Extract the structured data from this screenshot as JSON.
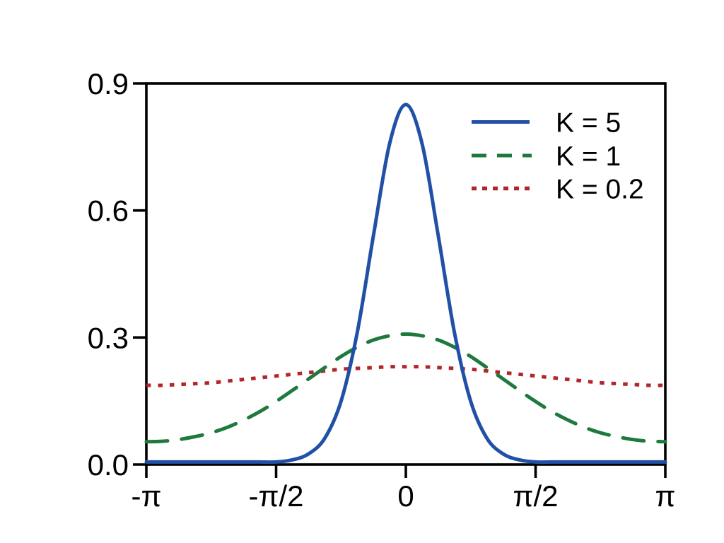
{
  "figure": {
    "background": "#ffffff",
    "axis_color": "#000000",
    "text_color": "#000000"
  },
  "chart_data": {
    "type": "line",
    "title": "",
    "xlabel": "",
    "ylabel": "",
    "x_unit": "radians, expressed as multiples of pi",
    "xlim_over_pi": [
      -1,
      1
    ],
    "ylim": [
      0,
      0.9
    ],
    "grid": false,
    "legend_position": "top-right-inside",
    "x_over_pi": [
      -1,
      -0.9375,
      -0.875,
      -0.8125,
      -0.75,
      -0.6875,
      -0.625,
      -0.5625,
      -0.5,
      -0.4375,
      -0.375,
      -0.3125,
      -0.25,
      -0.1875,
      -0.125,
      -0.0625,
      0,
      0.0625,
      0.125,
      0.1875,
      0.25,
      0.3125,
      0.375,
      0.4375,
      0.5,
      0.5625,
      0.625,
      0.6875,
      0.75,
      0.8125,
      0.875,
      0.9375,
      1
    ],
    "series": [
      {
        "name": "K = 5",
        "style": "solid",
        "color": "#2151A6",
        "values": [
          0.006,
          0.006,
          0.006,
          0.006,
          0.006,
          0.006,
          0.006,
          0.006,
          0.006,
          0.011,
          0.025,
          0.062,
          0.149,
          0.311,
          0.54,
          0.758,
          0.85,
          0.758,
          0.54,
          0.311,
          0.149,
          0.062,
          0.025,
          0.011,
          0.006,
          0.006,
          0.006,
          0.006,
          0.006,
          0.006,
          0.006,
          0.006,
          0.006
        ]
      },
      {
        "name": "K = 1",
        "style": "dashed",
        "color": "#1E7A3C",
        "values": [
          0.054,
          0.055,
          0.059,
          0.066,
          0.075,
          0.088,
          0.105,
          0.125,
          0.149,
          0.175,
          0.202,
          0.229,
          0.255,
          0.277,
          0.294,
          0.304,
          0.308,
          0.304,
          0.294,
          0.277,
          0.255,
          0.229,
          0.202,
          0.175,
          0.149,
          0.125,
          0.105,
          0.088,
          0.075,
          0.066,
          0.059,
          0.055,
          0.054
        ]
      },
      {
        "name": "K = 0.2",
        "style": "dotted",
        "color": "#B02629",
        "values": [
          0.187,
          0.187,
          0.189,
          0.191,
          0.193,
          0.197,
          0.201,
          0.205,
          0.209,
          0.213,
          0.217,
          0.221,
          0.225,
          0.227,
          0.229,
          0.231,
          0.231,
          0.231,
          0.229,
          0.227,
          0.225,
          0.221,
          0.217,
          0.213,
          0.209,
          0.205,
          0.201,
          0.197,
          0.193,
          0.191,
          0.189,
          0.187,
          0.187
        ]
      }
    ],
    "x_ticks": [
      {
        "value_over_pi": -1,
        "label": "-π"
      },
      {
        "value_over_pi": -0.5,
        "label": "-π/2"
      },
      {
        "value_over_pi": 0,
        "label": "0"
      },
      {
        "value_over_pi": 0.5,
        "label": "π/2"
      },
      {
        "value_over_pi": 1,
        "label": "π"
      }
    ],
    "y_ticks": [
      {
        "value": 0.0,
        "label": "0.0"
      },
      {
        "value": 0.3,
        "label": "0.3"
      },
      {
        "value": 0.6,
        "label": "0.6"
      },
      {
        "value": 0.9,
        "label": "0.9"
      }
    ]
  }
}
